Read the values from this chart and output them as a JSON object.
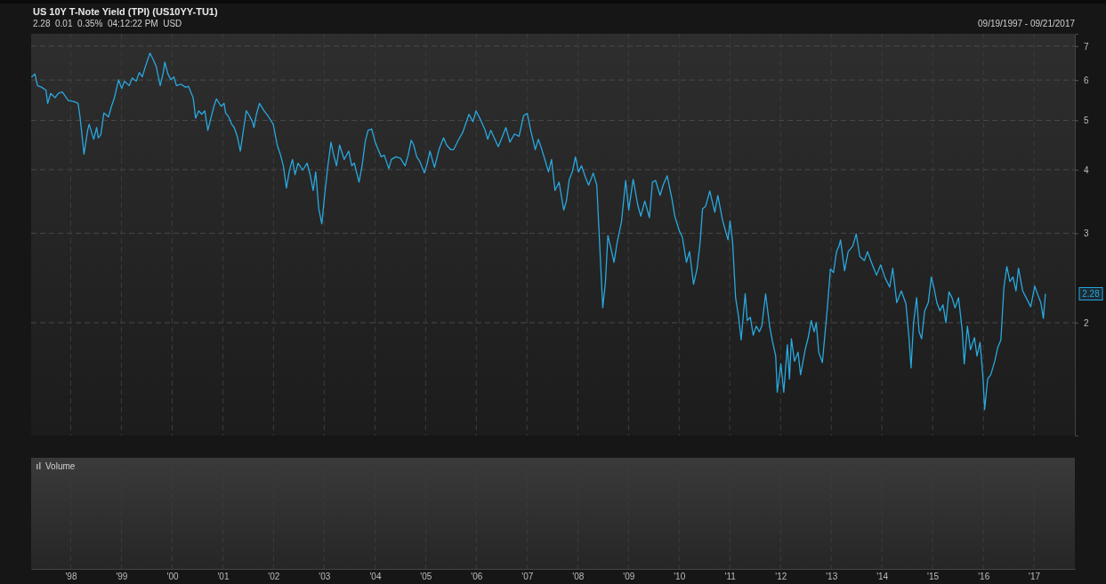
{
  "chart_data": {
    "type": "line",
    "title": "US 10Y T-Note Yield (TPI) (US10YY-TU1)",
    "subtitle": "2.28  0.01  0.35%  04:12:22 PM  USD",
    "annotations": [
      "09/19/1997 - 09/21/2017",
      "Volume",
      "2.28"
    ],
    "log": "y2",
    "grid": true,
    "xlim": [
      "1997-09-19",
      "2018-04-21"
    ],
    "y2lim": [
      1.2,
      7.4
    ],
    "xticks": [
      {
        "value": "1998-07-01",
        "label": "'98"
      },
      {
        "value": "1999-07-01",
        "label": "'99"
      },
      {
        "value": "2000-07-01",
        "label": "'00"
      },
      {
        "value": "2001-07-01",
        "label": "'01"
      },
      {
        "value": "2002-07-01",
        "label": "'02"
      },
      {
        "value": "2003-07-01",
        "label": "'03"
      },
      {
        "value": "2004-07-01",
        "label": "'04"
      },
      {
        "value": "2005-07-01",
        "label": "'05"
      },
      {
        "value": "2006-07-01",
        "label": "'06"
      },
      {
        "value": "2007-07-01",
        "label": "'07"
      },
      {
        "value": "2008-07-01",
        "label": "'08"
      },
      {
        "value": "2009-07-01",
        "label": "'09"
      },
      {
        "value": "2010-07-01",
        "label": "'10"
      },
      {
        "value": "2011-07-01",
        "label": "'11"
      },
      {
        "value": "2012-07-01",
        "label": "'12"
      },
      {
        "value": "2013-07-01",
        "label": "'13"
      },
      {
        "value": "2014-07-01",
        "label": "'14"
      },
      {
        "value": "2015-07-01",
        "label": "'15"
      },
      {
        "value": "2016-07-01",
        "label": "'16"
      },
      {
        "value": "2017-07-01",
        "label": "'17"
      }
    ],
    "y2ticks": [
      2,
      3,
      4,
      5,
      6,
      7
    ],
    "series": [
      {
        "axis": "y2",
        "color": "#29a8df",
        "x": [
          "1997-09-21",
          "1997-10-16",
          "1997-11-04",
          "1997-12-03",
          "1998-01-04",
          "1998-01-16",
          "1998-02-07",
          "1998-03-11",
          "1998-04-02",
          "1998-05-01",
          "1998-06-14",
          "1998-07-28",
          "1998-08-23",
          "1998-09-06",
          "1998-10-05",
          "1998-10-31",
          "1998-11-11",
          "1998-12-14",
          "1999-01-04",
          "1999-01-16",
          "1999-02-03",
          "1999-02-25",
          "1999-03-30",
          "1999-04-21",
          "1999-05-12",
          "1999-06-11",
          "1999-07-03",
          "1999-07-24",
          "1999-08-26",
          "1999-09-17",
          "1999-10-16",
          "1999-11-07",
          "1999-11-29",
          "1999-12-21",
          "2000-01-23",
          "2000-02-14",
          "2000-03-08",
          "2000-04-06",
          "2000-04-28",
          "2000-05-09",
          "2000-05-31",
          "2000-06-22",
          "2000-07-13",
          "2000-08-01",
          "2000-09-03",
          "2000-10-05",
          "2000-10-27",
          "2000-11-29",
          "2000-12-17",
          "2001-01-08",
          "2001-01-30",
          "2001-02-21",
          "2001-03-15",
          "2001-04-06",
          "2001-04-28",
          "2001-05-16",
          "2001-06-18",
          "2001-07-10",
          "2001-07-21",
          "2001-08-12",
          "2001-09-03",
          "2001-09-21",
          "2001-10-13",
          "2001-11-04",
          "2001-11-26",
          "2001-12-17",
          "2002-01-08",
          "2002-01-30",
          "2002-02-10",
          "2002-02-28",
          "2002-03-22",
          "2002-04-24",
          "2002-05-27",
          "2002-06-29",
          "2002-07-28",
          "2002-08-19",
          "2002-09-10",
          "2002-10-02",
          "2002-10-24",
          "2002-11-15",
          "2002-12-03",
          "2002-12-25",
          "2003-01-27",
          "2003-02-28",
          "2003-03-22",
          "2003-04-13",
          "2003-05-01",
          "2003-05-23",
          "2003-06-14",
          "2003-07-06",
          "2003-07-28",
          "2003-08-19",
          "2003-09-06",
          "2003-09-28",
          "2003-10-20",
          "2003-11-22",
          "2003-12-25",
          "2004-01-16",
          "2004-02-03",
          "2004-03-08",
          "2004-03-30",
          "2004-04-21",
          "2004-05-12",
          "2004-06-07",
          "2004-07-03",
          "2004-07-24",
          "2004-08-15",
          "2004-09-06",
          "2004-10-09",
          "2004-10-27",
          "2004-11-29",
          "2005-01-01",
          "2005-02-03",
          "2005-02-25",
          "2005-03-19",
          "2005-04-06",
          "2005-04-28",
          "2005-05-20",
          "2005-06-22",
          "2005-07-13",
          "2005-08-01",
          "2005-09-03",
          "2005-10-05",
          "2005-11-07",
          "2005-11-29",
          "2005-12-28",
          "2006-01-19",
          "2006-02-21",
          "2006-03-26",
          "2006-05-09",
          "2006-06-07",
          "2006-06-29",
          "2006-08-01",
          "2006-09-03",
          "2006-09-21",
          "2006-10-13",
          "2006-11-15",
          "2006-12-06",
          "2006-12-28",
          "2007-01-30",
          "2007-02-28",
          "2007-04-02",
          "2007-05-05",
          "2007-06-07",
          "2007-07-03",
          "2007-07-28",
          "2007-08-30",
          "2007-09-21",
          "2007-10-13",
          "2007-11-11",
          "2007-12-03",
          "2007-12-25",
          "2008-01-19",
          "2008-02-17",
          "2008-03-22",
          "2008-04-10",
          "2008-05-01",
          "2008-05-23",
          "2008-06-14",
          "2008-07-06",
          "2008-07-28",
          "2008-08-26",
          "2008-09-17",
          "2008-10-09",
          "2008-10-20",
          "2008-11-15",
          "2008-12-14",
          "2008-12-28",
          "2009-01-16",
          "2009-02-03",
          "2009-02-25",
          "2009-03-19",
          "2009-04-10",
          "2009-05-12",
          "2009-06-11",
          "2009-07-03",
          "2009-08-04",
          "2009-09-06",
          "2009-09-28",
          "2009-10-27",
          "2009-11-29",
          "2009-12-21",
          "2010-01-12",
          "2010-02-14",
          "2010-03-08",
          "2010-04-06",
          "2010-05-09",
          "2010-05-31",
          "2010-07-03",
          "2010-07-24",
          "2010-08-23",
          "2010-09-14",
          "2010-10-13",
          "2010-11-07",
          "2010-11-29",
          "2010-12-17",
          "2011-01-08",
          "2011-02-07",
          "2011-03-15",
          "2011-04-06",
          "2011-05-09",
          "2011-06-18",
          "2011-07-03",
          "2011-07-21",
          "2011-08-12",
          "2011-09-03",
          "2011-09-21",
          "2011-10-20",
          "2011-11-04",
          "2011-11-26",
          "2011-12-17",
          "2012-01-08",
          "2012-01-30",
          "2012-02-17",
          "2012-03-15",
          "2012-04-13",
          "2012-05-05",
          "2012-05-27",
          "2012-06-07",
          "2012-07-03",
          "2012-07-24",
          "2012-08-19",
          "2012-09-03",
          "2012-09-17",
          "2012-10-09",
          "2012-11-04",
          "2012-11-22",
          "2012-12-25",
          "2013-01-16",
          "2013-02-07",
          "2013-02-28",
          "2013-03-15",
          "2013-04-02",
          "2013-04-28",
          "2013-06-03",
          "2013-06-25",
          "2013-07-17",
          "2013-08-08",
          "2013-08-26",
          "2013-09-06",
          "2013-10-05",
          "2013-10-31",
          "2013-12-03",
          "2013-12-28",
          "2014-01-23",
          "2014-02-25",
          "2014-03-19",
          "2014-04-21",
          "2014-05-23",
          "2014-06-22",
          "2014-07-24",
          "2014-08-26",
          "2014-09-17",
          "2014-10-16",
          "2014-11-18",
          "2014-12-21",
          "2015-01-12",
          "2015-01-27",
          "2015-02-14",
          "2015-03-08",
          "2015-03-26",
          "2015-04-13",
          "2015-05-05",
          "2015-05-31",
          "2015-06-22",
          "2015-07-13",
          "2015-08-01",
          "2015-08-23",
          "2015-09-14",
          "2015-10-05",
          "2015-10-27",
          "2015-11-18",
          "2015-12-10",
          "2016-01-04",
          "2016-01-30",
          "2016-02-14",
          "2016-03-08",
          "2016-03-30",
          "2016-04-28",
          "2016-05-16",
          "2016-06-07",
          "2016-06-29",
          "2016-07-10",
          "2016-08-01",
          "2016-08-23",
          "2016-09-21",
          "2016-10-13",
          "2016-11-04",
          "2016-11-26",
          "2016-12-17",
          "2017-01-08",
          "2017-01-30",
          "2017-02-21",
          "2017-03-11",
          "2017-04-10",
          "2017-05-05",
          "2017-06-07",
          "2017-07-06",
          "2017-07-28",
          "2017-08-19",
          "2017-09-06",
          "2017-09-21"
        ],
        "values": [
          6.08,
          6.17,
          5.85,
          5.81,
          5.73,
          5.4,
          5.65,
          5.54,
          5.65,
          5.69,
          5.47,
          5.44,
          5.4,
          5.08,
          4.29,
          4.78,
          4.91,
          4.59,
          4.84,
          4.62,
          4.69,
          5.17,
          5.08,
          5.33,
          5.54,
          6.01,
          5.78,
          5.97,
          5.85,
          6.06,
          5.97,
          6.21,
          6.09,
          6.38,
          6.78,
          6.6,
          6.38,
          5.85,
          6.21,
          6.51,
          6.17,
          6.01,
          6.09,
          5.85,
          5.89,
          5.81,
          5.83,
          5.54,
          5.05,
          5.22,
          5.14,
          5.22,
          4.78,
          5.05,
          5.33,
          5.51,
          5.33,
          5.4,
          5.17,
          5.08,
          4.91,
          4.84,
          4.65,
          4.35,
          4.78,
          5.22,
          5.11,
          4.97,
          4.84,
          5.14,
          5.4,
          5.22,
          5.08,
          4.91,
          4.47,
          4.29,
          4.07,
          3.68,
          3.99,
          4.19,
          3.91,
          4.12,
          3.99,
          4.12,
          3.91,
          3.64,
          3.96,
          3.35,
          3.13,
          3.6,
          4.07,
          4.53,
          4.29,
          4.07,
          4.47,
          4.19,
          4.35,
          4.07,
          4.12,
          3.78,
          4.07,
          4.53,
          4.78,
          4.81,
          4.53,
          4.38,
          4.24,
          4.27,
          4.02,
          4.19,
          4.24,
          4.21,
          4.07,
          4.27,
          4.57,
          4.47,
          4.24,
          4.15,
          3.94,
          4.12,
          4.35,
          4.04,
          4.38,
          4.62,
          4.47,
          4.38,
          4.38,
          4.57,
          4.74,
          5.14,
          4.97,
          5.22,
          5.01,
          4.78,
          4.59,
          4.78,
          4.57,
          4.44,
          4.59,
          4.84,
          4.53,
          4.7,
          4.65,
          5.11,
          5.16,
          4.78,
          4.38,
          4.59,
          4.41,
          4.15,
          3.96,
          4.19,
          3.64,
          3.78,
          3.33,
          3.47,
          3.83,
          3.96,
          4.24,
          3.96,
          4.07,
          3.86,
          3.73,
          3.86,
          3.94,
          3.73,
          2.56,
          2.14,
          2.4,
          2.97,
          2.8,
          2.63,
          2.87,
          3.16,
          3.81,
          3.33,
          3.83,
          3.41,
          3.24,
          3.47,
          3.22,
          3.78,
          3.81,
          3.56,
          3.73,
          3.89,
          3.52,
          3.24,
          3.03,
          2.95,
          2.63,
          2.76,
          2.38,
          2.55,
          2.87,
          3.35,
          3.39,
          3.63,
          3.3,
          3.56,
          3.19,
          2.91,
          3.17,
          2.89,
          2.24,
          2.05,
          1.85,
          2.28,
          2.02,
          2.05,
          1.89,
          1.97,
          1.92,
          1.97,
          2.28,
          1.97,
          1.83,
          1.72,
          1.46,
          1.66,
          1.46,
          1.81,
          1.55,
          1.86,
          1.68,
          1.75,
          1.58,
          1.77,
          1.87,
          2.02,
          1.92,
          2.0,
          1.75,
          1.67,
          2.14,
          2.55,
          2.51,
          2.76,
          2.83,
          2.91,
          2.53,
          2.76,
          2.83,
          2.99,
          2.7,
          2.65,
          2.76,
          2.61,
          2.48,
          2.6,
          2.45,
          2.35,
          2.56,
          2.19,
          2.31,
          2.18,
          1.87,
          1.63,
          2.0,
          2.24,
          1.92,
          1.86,
          2.11,
          2.19,
          2.46,
          2.33,
          2.19,
          2.11,
          2.17,
          2.0,
          2.3,
          2.24,
          2.14,
          2.24,
          1.94,
          1.66,
          1.97,
          1.77,
          1.87,
          1.72,
          1.83,
          1.55,
          1.35,
          1.55,
          1.58,
          1.68,
          1.79,
          1.85,
          2.35,
          2.58,
          2.41,
          2.46,
          2.31,
          2.56,
          2.31,
          2.24,
          2.15,
          2.36,
          2.27,
          2.19,
          2.04,
          2.28
        ]
      }
    ]
  }
}
